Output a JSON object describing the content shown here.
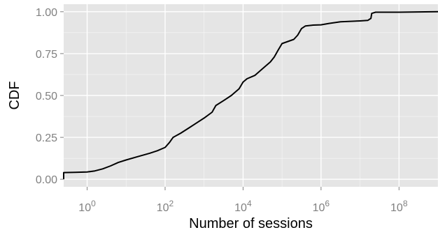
{
  "chart_data": {
    "type": "line",
    "title": "",
    "xlabel": "Number of sessions",
    "ylabel": "CDF",
    "x_scale": "log10",
    "xlim": [
      0.25,
      1000000000
    ],
    "ylim": [
      -0.045,
      1.045
    ],
    "x_ticks": [
      {
        "value": 1,
        "base": "10",
        "exp": "0"
      },
      {
        "value": 100,
        "base": "10",
        "exp": "2"
      },
      {
        "value": 10000,
        "base": "10",
        "exp": "4"
      },
      {
        "value": 1000000,
        "base": "10",
        "exp": "6"
      },
      {
        "value": 100000000,
        "base": "10",
        "exp": "8"
      }
    ],
    "y_ticks": [
      {
        "value": 0,
        "label": "0.00"
      },
      {
        "value": 0.25,
        "label": "0.25"
      },
      {
        "value": 0.5,
        "label": "0.50"
      },
      {
        "value": 0.75,
        "label": "0.75"
      },
      {
        "value": 1,
        "label": "1.00"
      }
    ],
    "grid": true,
    "colors": {
      "panel": "#e5e5e5",
      "grid": "#ffffff",
      "line": "#000000",
      "tick_text": "#808080"
    },
    "series": [
      {
        "points": [
          [
            0.25,
            0.0
          ],
          [
            0.25,
            0.04
          ],
          [
            0.5,
            0.041
          ],
          [
            1,
            0.043
          ],
          [
            1.58,
            0.05
          ],
          [
            2.5,
            0.062
          ],
          [
            4,
            0.08
          ],
          [
            6.3,
            0.1
          ],
          [
            10,
            0.115
          ],
          [
            20,
            0.135
          ],
          [
            40,
            0.155
          ],
          [
            63,
            0.17
          ],
          [
            100,
            0.19
          ],
          [
            130,
            0.22
          ],
          [
            160,
            0.25
          ],
          [
            250,
            0.275
          ],
          [
            400,
            0.305
          ],
          [
            630,
            0.335
          ],
          [
            1000,
            0.365
          ],
          [
            1600,
            0.4
          ],
          [
            2000,
            0.44
          ],
          [
            3200,
            0.47
          ],
          [
            5000,
            0.5
          ],
          [
            7900,
            0.54
          ],
          [
            10000,
            0.58
          ],
          [
            12600,
            0.6
          ],
          [
            20000,
            0.62
          ],
          [
            31600,
            0.66
          ],
          [
            50000,
            0.7
          ],
          [
            63000,
            0.73
          ],
          [
            79000,
            0.77
          ],
          [
            100000,
            0.81
          ],
          [
            200000,
            0.835
          ],
          [
            251000,
            0.86
          ],
          [
            316000,
            0.9
          ],
          [
            398000,
            0.915
          ],
          [
            631000,
            0.92
          ],
          [
            1000000,
            0.922
          ],
          [
            1600000,
            0.93
          ],
          [
            3160000,
            0.94
          ],
          [
            10000000,
            0.945
          ],
          [
            15800000,
            0.948
          ],
          [
            19000000,
            0.96
          ],
          [
            20000000,
            0.99
          ],
          [
            25100000,
            0.997
          ],
          [
            100000000,
            0.997
          ],
          [
            1000000000,
            1.0
          ]
        ]
      }
    ]
  }
}
